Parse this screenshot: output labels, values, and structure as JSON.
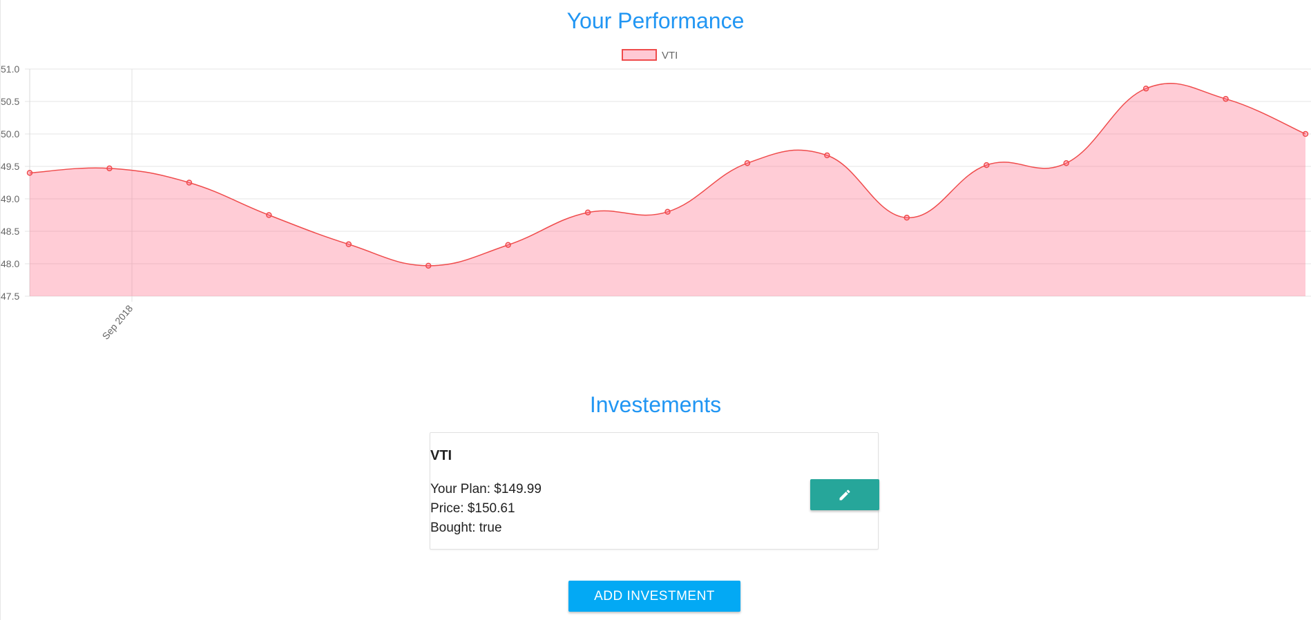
{
  "performance": {
    "title": "Your Performance"
  },
  "chart_data": {
    "type": "area",
    "legend": {
      "position": "top-center"
    },
    "grid": true,
    "ylim": [
      47.5,
      51.0
    ],
    "y_ticks": [
      "51.0",
      "50.5",
      "50.0",
      "49.5",
      "49.0",
      "48.5",
      "48.0",
      "47.5"
    ],
    "x_tick_labels": [
      "Sep 2018"
    ],
    "series": [
      {
        "name": "VTI",
        "color": "#ff6384",
        "values": [
          49.4,
          49.47,
          49.25,
          48.75,
          48.3,
          47.97,
          48.29,
          48.79,
          48.8,
          49.55,
          49.67,
          48.71,
          49.52,
          49.55,
          50.7,
          50.54,
          50.0
        ]
      }
    ]
  },
  "investments": {
    "title": "Investements",
    "items": [
      {
        "name": "VTI",
        "plan_label": "Your Plan:",
        "plan_value": "$149.99",
        "price_label": "Price:",
        "price_value": "$150.61",
        "bought_label": "Bought:",
        "bought_value": "true",
        "edit_icon": "pencil-icon"
      }
    ],
    "add_button_label": "ADD INVESTMENT"
  },
  "colors": {
    "title": "#2196f3",
    "edit_button": "#26a69a",
    "add_button": "#03a9f4"
  }
}
